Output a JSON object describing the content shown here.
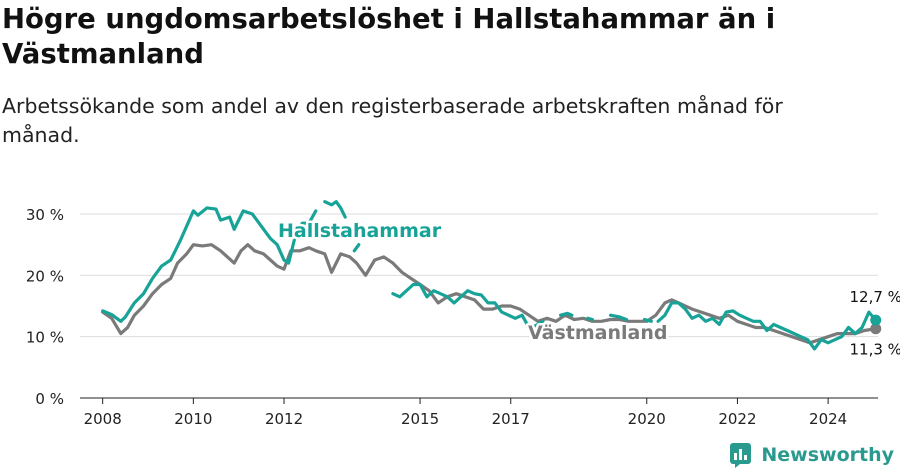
{
  "title": "Högre ungdomsarbetslöshet i Hallstahammar än i Västmanland",
  "subtitle": "Arbetssökande som andel av den registerbaserade arbetskraften månad för månad.",
  "brand": "Newsworthy",
  "colors": {
    "hallstahammar": "#17a398",
    "vastmanland": "#7a7a7a",
    "grid": "#dddddd",
    "brand": "#2a9a8e"
  },
  "icons": {
    "brand": "newsworthy-logo-icon"
  },
  "chart_data": {
    "type": "line",
    "xlim": [
      2007.5,
      2025.1
    ],
    "ylim": [
      0,
      30
    ],
    "yticks": [
      {
        "value": 0,
        "label": "0 %"
      },
      {
        "value": 10,
        "label": "10 %"
      },
      {
        "value": 20,
        "label": "20 %"
      },
      {
        "value": 30,
        "label": "30 %"
      }
    ],
    "xticks": [
      {
        "value": 2008,
        "label": "2008"
      },
      {
        "value": 2010,
        "label": "2010"
      },
      {
        "value": 2012,
        "label": "2012"
      },
      {
        "value": 2015,
        "label": "2015"
      },
      {
        "value": 2017,
        "label": "2017"
      },
      {
        "value": 2020,
        "label": "2020"
      },
      {
        "value": 2022,
        "label": "2022"
      },
      {
        "value": 2024,
        "label": "2024"
      }
    ],
    "grid": true,
    "series": [
      {
        "name": "Hallstahammar",
        "label": "Hallstahammar",
        "end_label": "12,7 %",
        "points": [
          [
            2008.0,
            14.2
          ],
          [
            2008.2,
            13.6
          ],
          [
            2008.4,
            12.5
          ],
          [
            2008.5,
            13.2
          ],
          [
            2008.7,
            15.5
          ],
          [
            2008.9,
            17.0
          ],
          [
            2009.1,
            19.5
          ],
          [
            2009.3,
            21.5
          ],
          [
            2009.5,
            22.5
          ],
          [
            2009.7,
            25.5
          ],
          [
            2009.85,
            28.0
          ],
          [
            2010.0,
            30.5
          ],
          [
            2010.1,
            29.8
          ],
          [
            2010.3,
            31.0
          ],
          [
            2010.5,
            30.8
          ],
          [
            2010.6,
            29.0
          ],
          [
            2010.8,
            29.5
          ],
          [
            2010.9,
            27.5
          ],
          [
            2011.1,
            30.5
          ],
          [
            2011.3,
            30.0
          ],
          [
            2011.4,
            29.0
          ],
          [
            2011.55,
            27.5
          ],
          [
            2011.7,
            26.0
          ],
          [
            2011.85,
            25.0
          ],
          [
            2012.0,
            22.5
          ],
          [
            2012.1,
            22.0
          ],
          [
            2012.25,
            26.5
          ],
          [
            2012.4,
            28.5
          ],
          [
            2012.55,
            28.5
          ],
          [
            2012.7,
            30.5
          ],
          null,
          [
            2012.9,
            32.0
          ],
          [
            2013.05,
            31.5
          ],
          [
            2013.15,
            32.0
          ],
          [
            2013.25,
            31.0
          ],
          [
            2013.35,
            29.5
          ],
          null,
          [
            2013.55,
            24.0
          ],
          [
            2013.65,
            25.0
          ],
          null,
          [
            2014.4,
            17.0
          ],
          [
            2014.55,
            16.5
          ],
          [
            2014.7,
            17.5
          ],
          [
            2014.85,
            18.5
          ],
          [
            2015.0,
            18.5
          ],
          [
            2015.15,
            16.5
          ],
          [
            2015.3,
            17.5
          ],
          [
            2015.45,
            17.0
          ],
          [
            2015.6,
            16.5
          ],
          [
            2015.75,
            15.5
          ],
          [
            2015.9,
            16.5
          ],
          [
            2016.05,
            17.5
          ],
          [
            2016.2,
            17.0
          ],
          [
            2016.35,
            16.8
          ],
          [
            2016.5,
            15.5
          ],
          [
            2016.65,
            15.5
          ],
          [
            2016.8,
            14.0
          ],
          [
            2016.95,
            13.5
          ],
          [
            2017.1,
            13.0
          ],
          [
            2017.25,
            13.5
          ],
          [
            2017.4,
            11.5
          ],
          [
            2017.55,
            11.8
          ],
          [
            2017.7,
            12.5
          ],
          [
            2017.85,
            10.5
          ],
          null,
          [
            2018.1,
            13.5
          ],
          [
            2018.25,
            13.8
          ],
          [
            2018.35,
            13.5
          ],
          null,
          [
            2018.7,
            13.0
          ],
          [
            2018.8,
            12.8
          ],
          null,
          [
            2019.2,
            13.5
          ],
          [
            2019.4,
            13.2
          ],
          [
            2019.55,
            12.8
          ],
          null,
          [
            2019.95,
            12.8
          ],
          [
            2020.1,
            12.5
          ],
          null,
          [
            2020.25,
            12.5
          ],
          [
            2020.4,
            13.5
          ],
          [
            2020.55,
            15.5
          ],
          [
            2020.7,
            15.5
          ],
          [
            2020.85,
            14.5
          ],
          [
            2021.0,
            13.0
          ],
          [
            2021.15,
            13.5
          ],
          [
            2021.3,
            12.5
          ],
          [
            2021.45,
            13.0
          ],
          [
            2021.6,
            12.0
          ],
          [
            2021.75,
            14.0
          ],
          [
            2021.9,
            14.2
          ],
          [
            2022.05,
            13.5
          ],
          [
            2022.2,
            13.0
          ],
          [
            2022.35,
            12.5
          ],
          [
            2022.5,
            12.5
          ],
          [
            2022.65,
            11.0
          ],
          [
            2022.8,
            12.0
          ],
          [
            2022.95,
            11.5
          ],
          [
            2023.1,
            11.0
          ],
          [
            2023.25,
            10.5
          ],
          [
            2023.4,
            10.0
          ],
          [
            2023.55,
            9.5
          ],
          [
            2023.7,
            8.0
          ],
          [
            2023.85,
            9.5
          ],
          [
            2024.0,
            9.0
          ],
          [
            2024.15,
            9.5
          ],
          [
            2024.3,
            10.0
          ],
          [
            2024.45,
            11.5
          ],
          [
            2024.6,
            10.5
          ],
          [
            2024.75,
            11.5
          ],
          [
            2024.9,
            14.0
          ],
          [
            2025.05,
            12.7
          ]
        ]
      },
      {
        "name": "Västmanland",
        "label": "Västmanland",
        "end_label": "11,3 %",
        "points": [
          [
            2008.0,
            14.0
          ],
          [
            2008.2,
            13.0
          ],
          [
            2008.4,
            10.5
          ],
          [
            2008.55,
            11.5
          ],
          [
            2008.7,
            13.5
          ],
          [
            2008.9,
            15.0
          ],
          [
            2009.1,
            17.0
          ],
          [
            2009.3,
            18.5
          ],
          [
            2009.5,
            19.5
          ],
          [
            2009.65,
            22.0
          ],
          [
            2009.85,
            23.5
          ],
          [
            2010.0,
            25.0
          ],
          [
            2010.2,
            24.8
          ],
          [
            2010.4,
            25.0
          ],
          [
            2010.6,
            24.0
          ],
          [
            2010.75,
            23.0
          ],
          [
            2010.9,
            22.0
          ],
          [
            2011.05,
            24.0
          ],
          [
            2011.2,
            25.0
          ],
          [
            2011.35,
            24.0
          ],
          [
            2011.55,
            23.5
          ],
          [
            2011.7,
            22.5
          ],
          [
            2011.85,
            21.5
          ],
          [
            2012.0,
            21.0
          ],
          [
            2012.15,
            24.0
          ],
          [
            2012.35,
            24.0
          ],
          [
            2012.55,
            24.5
          ],
          [
            2012.7,
            24.0
          ],
          [
            2012.9,
            23.5
          ],
          [
            2013.05,
            20.5
          ],
          [
            2013.25,
            23.5
          ],
          [
            2013.45,
            23.0
          ],
          [
            2013.6,
            22.0
          ],
          [
            2013.8,
            20.0
          ],
          [
            2014.0,
            22.5
          ],
          [
            2014.2,
            23.0
          ],
          [
            2014.4,
            22.0
          ],
          [
            2014.6,
            20.5
          ],
          [
            2014.8,
            19.5
          ],
          [
            2015.0,
            18.5
          ],
          [
            2015.2,
            17.5
          ],
          [
            2015.4,
            15.5
          ],
          [
            2015.6,
            16.5
          ],
          [
            2015.8,
            17.0
          ],
          [
            2016.0,
            16.5
          ],
          [
            2016.2,
            16.0
          ],
          [
            2016.4,
            14.5
          ],
          [
            2016.6,
            14.5
          ],
          [
            2016.8,
            15.0
          ],
          [
            2017.0,
            15.0
          ],
          [
            2017.2,
            14.5
          ],
          [
            2017.4,
            13.5
          ],
          [
            2017.6,
            12.5
          ],
          [
            2017.8,
            13.0
          ],
          [
            2018.0,
            12.5
          ],
          [
            2018.2,
            13.5
          ],
          [
            2018.4,
            12.8
          ],
          [
            2018.6,
            13.0
          ],
          [
            2018.8,
            12.5
          ],
          [
            2019.0,
            12.5
          ],
          [
            2019.2,
            12.8
          ],
          [
            2019.4,
            12.8
          ],
          [
            2019.6,
            12.5
          ],
          [
            2019.8,
            12.5
          ],
          [
            2020.0,
            12.5
          ],
          [
            2020.2,
            13.5
          ],
          [
            2020.4,
            15.5
          ],
          [
            2020.55,
            16.0
          ],
          [
            2020.7,
            15.5
          ],
          [
            2020.85,
            15.0
          ],
          [
            2021.0,
            14.5
          ],
          [
            2021.2,
            14.0
          ],
          [
            2021.4,
            13.5
          ],
          [
            2021.6,
            13.0
          ],
          [
            2021.8,
            13.5
          ],
          [
            2022.0,
            12.5
          ],
          [
            2022.2,
            12.0
          ],
          [
            2022.4,
            11.5
          ],
          [
            2022.6,
            11.5
          ],
          [
            2022.8,
            11.0
          ],
          [
            2023.0,
            10.5
          ],
          [
            2023.2,
            10.0
          ],
          [
            2023.4,
            9.5
          ],
          [
            2023.6,
            9.0
          ],
          [
            2023.8,
            9.5
          ],
          [
            2024.0,
            10.0
          ],
          [
            2024.2,
            10.5
          ],
          [
            2024.4,
            10.5
          ],
          [
            2024.6,
            10.5
          ],
          [
            2024.8,
            11.0
          ],
          [
            2025.05,
            11.3
          ]
        ]
      }
    ]
  }
}
